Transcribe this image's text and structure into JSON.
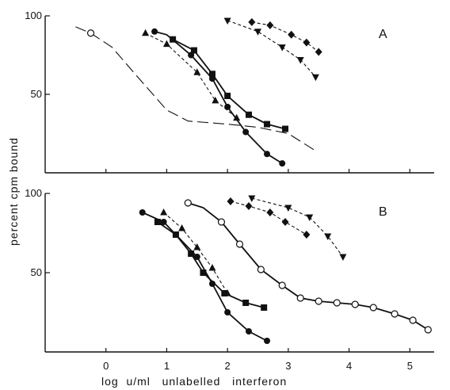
{
  "chart_data": {
    "type": "line",
    "ylabel": "percent   cpm   bound",
    "xlabel": "log  u/ml   unlabelled   interferon",
    "xlim": [
      -1,
      5.4
    ],
    "xticks": [
      0,
      1,
      2,
      3,
      4,
      5
    ],
    "panels": [
      {
        "letter": "A",
        "ylim": [
          0,
          100
        ],
        "yticks": [
          50,
          100
        ],
        "series": [
          {
            "marker": "open-circle",
            "line": "longdash",
            "points": [
              [
                -0.5,
                93
              ],
              [
                -0.25,
                89
              ],
              [
                0.1,
                80
              ],
              [
                0.5,
                62
              ],
              [
                1.0,
                40
              ],
              [
                1.35,
                33
              ],
              [
                2.0,
                31
              ],
              [
                2.5,
                29
              ],
              [
                3.0,
                25
              ],
              [
                3.45,
                14
              ]
            ],
            "marked": [
              [
                -0.25,
                89
              ]
            ]
          },
          {
            "marker": "filled-circle",
            "line": "solid",
            "points": [
              [
                0.8,
                90
              ],
              [
                1.0,
                88
              ],
              [
                1.4,
                75
              ],
              [
                1.75,
                60
              ],
              [
                2.0,
                42
              ],
              [
                2.3,
                26
              ],
              [
                2.65,
                12
              ],
              [
                2.9,
                6
              ]
            ],
            "marked": [
              [
                0.8,
                90
              ],
              [
                1.4,
                75
              ],
              [
                1.75,
                60
              ],
              [
                2.0,
                42
              ],
              [
                2.3,
                26
              ],
              [
                2.65,
                12
              ],
              [
                2.9,
                6
              ]
            ]
          },
          {
            "marker": "filled-square",
            "line": "solid",
            "points": [
              [
                1.1,
                85
              ],
              [
                1.45,
                78
              ],
              [
                1.75,
                63
              ],
              [
                2.0,
                49
              ],
              [
                2.35,
                37
              ],
              [
                2.65,
                31
              ],
              [
                2.95,
                28
              ]
            ],
            "marked": [
              [
                1.1,
                85
              ],
              [
                1.45,
                78
              ],
              [
                1.75,
                63
              ],
              [
                2.0,
                49
              ],
              [
                2.35,
                37
              ],
              [
                2.65,
                31
              ],
              [
                2.95,
                28
              ]
            ]
          },
          {
            "marker": "filled-triangle",
            "line": "dash",
            "points": [
              [
                0.65,
                89
              ],
              [
                1.0,
                82
              ],
              [
                1.5,
                64
              ],
              [
                1.8,
                46
              ],
              [
                2.15,
                35
              ]
            ],
            "marked": [
              [
                0.65,
                89
              ],
              [
                1.0,
                82
              ],
              [
                1.5,
                64
              ],
              [
                1.8,
                46
              ],
              [
                2.15,
                35
              ]
            ]
          },
          {
            "marker": "filled-diamond",
            "line": "dash",
            "points": [
              [
                2.4,
                96
              ],
              [
                2.7,
                94
              ],
              [
                3.05,
                88
              ],
              [
                3.3,
                83
              ],
              [
                3.5,
                77
              ]
            ],
            "marked": [
              [
                2.4,
                96
              ],
              [
                2.7,
                94
              ],
              [
                3.05,
                88
              ],
              [
                3.3,
                83
              ],
              [
                3.5,
                77
              ]
            ]
          },
          {
            "marker": "filled-inverted-triangle",
            "line": "dash",
            "points": [
              [
                2.0,
                97
              ],
              [
                2.5,
                90
              ],
              [
                2.9,
                80
              ],
              [
                3.2,
                72
              ],
              [
                3.45,
                61
              ]
            ],
            "marked": [
              [
                2.0,
                97
              ],
              [
                2.5,
                90
              ],
              [
                2.9,
                80
              ],
              [
                3.2,
                72
              ],
              [
                3.45,
                61
              ]
            ]
          }
        ]
      },
      {
        "letter": "B",
        "ylim": [
          0,
          100
        ],
        "yticks": [
          50,
          100
        ],
        "series": [
          {
            "marker": "open-circle",
            "line": "solid",
            "points": [
              [
                1.35,
                94
              ],
              [
                1.6,
                91
              ],
              [
                1.9,
                82
              ],
              [
                2.2,
                68
              ],
              [
                2.55,
                52
              ],
              [
                2.9,
                42
              ],
              [
                3.2,
                34
              ],
              [
                3.5,
                32
              ],
              [
                3.8,
                31
              ],
              [
                4.1,
                30
              ],
              [
                4.4,
                28
              ],
              [
                4.75,
                24
              ],
              [
                5.05,
                20
              ],
              [
                5.3,
                14
              ]
            ],
            "marked": [
              [
                1.35,
                94
              ],
              [
                1.9,
                82
              ],
              [
                2.2,
                68
              ],
              [
                2.55,
                52
              ],
              [
                2.9,
                42
              ],
              [
                3.2,
                34
              ],
              [
                3.5,
                32
              ],
              [
                3.8,
                31
              ],
              [
                4.1,
                30
              ],
              [
                4.4,
                28
              ],
              [
                4.75,
                24
              ],
              [
                5.05,
                20
              ],
              [
                5.3,
                14
              ]
            ]
          },
          {
            "marker": "filled-circle",
            "line": "solid",
            "points": [
              [
                0.6,
                88
              ],
              [
                0.95,
                82
              ],
              [
                1.2,
                72
              ],
              [
                1.5,
                60
              ],
              [
                1.75,
                43
              ],
              [
                2.0,
                25
              ],
              [
                2.35,
                13
              ],
              [
                2.65,
                7
              ]
            ],
            "marked": [
              [
                0.6,
                88
              ],
              [
                0.95,
                82
              ],
              [
                1.5,
                60
              ],
              [
                1.75,
                43
              ],
              [
                2.0,
                25
              ],
              [
                2.35,
                13
              ],
              [
                2.65,
                7
              ]
            ]
          },
          {
            "marker": "filled-square",
            "line": "solid",
            "points": [
              [
                0.85,
                82
              ],
              [
                1.15,
                74
              ],
              [
                1.4,
                62
              ],
              [
                1.6,
                50
              ],
              [
                1.95,
                37
              ],
              [
                2.3,
                31
              ],
              [
                2.6,
                28
              ]
            ],
            "marked": [
              [
                0.85,
                82
              ],
              [
                1.15,
                74
              ],
              [
                1.4,
                62
              ],
              [
                1.6,
                50
              ],
              [
                1.95,
                37
              ],
              [
                2.3,
                31
              ],
              [
                2.6,
                28
              ]
            ]
          },
          {
            "marker": "filled-triangle",
            "line": "dash",
            "points": [
              [
                0.95,
                88
              ],
              [
                1.25,
                78
              ],
              [
                1.5,
                66
              ],
              [
                1.75,
                53
              ],
              [
                2.0,
                37
              ]
            ],
            "marked": [
              [
                0.95,
                88
              ],
              [
                1.25,
                78
              ],
              [
                1.5,
                66
              ],
              [
                1.75,
                53
              ],
              [
                2.0,
                37
              ]
            ]
          },
          {
            "marker": "filled-diamond",
            "line": "dash",
            "points": [
              [
                2.05,
                95
              ],
              [
                2.35,
                92
              ],
              [
                2.7,
                88
              ],
              [
                2.95,
                82
              ],
              [
                3.3,
                74
              ]
            ],
            "marked": [
              [
                2.05,
                95
              ],
              [
                2.35,
                92
              ],
              [
                2.7,
                88
              ],
              [
                2.95,
                82
              ],
              [
                3.3,
                74
              ]
            ]
          },
          {
            "marker": "filled-inverted-triangle",
            "line": "dash",
            "points": [
              [
                2.4,
                97
              ],
              [
                3.0,
                91
              ],
              [
                3.35,
                85
              ],
              [
                3.65,
                73
              ],
              [
                3.9,
                60
              ]
            ],
            "marked": [
              [
                2.4,
                97
              ],
              [
                3.0,
                91
              ],
              [
                3.35,
                85
              ],
              [
                3.65,
                73
              ],
              [
                3.9,
                60
              ]
            ]
          }
        ]
      }
    ]
  },
  "colors": {
    "ink": "#111111",
    "background": "#ffffff"
  }
}
